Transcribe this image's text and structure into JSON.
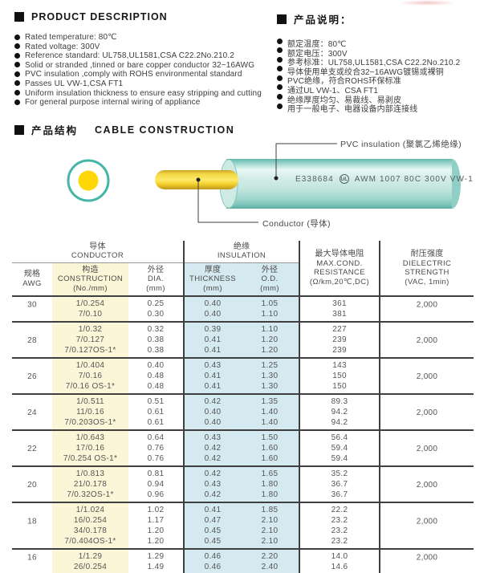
{
  "description_en": {
    "title": "PRODUCT  DESCRIPTION",
    "items": [
      "Rated temperature: 80℃",
      "Rated voltage: 300V",
      "Reference standard: UL758,UL1581,CSA C22.2No.210.2",
      "Solid or stranded ,tinned or bare copper conductor 32~16AWG",
      "PVC insulation ,comply with ROHS environmental standard",
      "Passes UL VW-1,CSA FT1",
      "Uniform insulation thickness to ensure easy stripping and cutting",
      "For general purpose internal wiring of appliance"
    ]
  },
  "description_cn": {
    "title": "产品说明：",
    "items": [
      "额定温度：80℃",
      "额定电压：300V",
      "参考标准：UL758,UL1581,CSA C22.2No.210.2",
      "导体使用单支或绞合32~16AWG镀锡或裸铜",
      "PVC绝缘，符合ROHS环保标准",
      "通过UL VW-1、CSA FT1",
      "绝缘厚度均匀、易裁线、易剥皮",
      "用于一般电子、电器设备内部连接线"
    ]
  },
  "construction": {
    "title_cn": "产品结构",
    "title_en": "CABLE  CONSTRUCTION",
    "pvc_label": "PVC insulation (聚氯乙烯绝缘)",
    "conductor_label": "Conductor (导体)",
    "print_cert": "E338684",
    "print_ul": "UL",
    "print_spec": "AWM 1007 80C 300V VW-1",
    "colors": {
      "jacket_teal": "#7cc6bc",
      "conductor_yellow": "#ffd90b",
      "ring_teal": "#45b5a8"
    }
  },
  "table": {
    "group_headers": {
      "conductor_cn": "导体",
      "conductor_en": "CONDUCTOR",
      "insulation_cn": "绝缘",
      "insulation_en": "INSULATION"
    },
    "columns": {
      "awg": {
        "cn": "规格",
        "en": "AWG"
      },
      "construction": {
        "cn": "构造",
        "en": "CONSTRUCTION",
        "unit": "(No./mm)"
      },
      "dia": {
        "cn": "外径",
        "en": "DIA.",
        "unit": "(mm)"
      },
      "thickness": {
        "cn": "厚度",
        "en": "THICKNESS",
        "unit": "(mm)"
      },
      "od": {
        "cn": "外径",
        "en": "O.D.",
        "unit": "(mm)"
      },
      "resistance": {
        "cn": "最大导体电阻",
        "en": "MAX.COND.",
        "en2": "RESISTANCE",
        "unit": "(Ω/km,20℃,DC)"
      },
      "dielectric": {
        "cn": "耐压强度",
        "en": "DIELECTRIC",
        "en2": "STRENGTH",
        "unit": "(VAC, 1min)"
      }
    },
    "rows": [
      {
        "awg": "30",
        "dielectric": "2,000",
        "lines": [
          {
            "construction": "1/0.254",
            "dia": "0.25",
            "thickness": "0.40",
            "od": "1.05",
            "resistance": "361"
          },
          {
            "construction": "7/0.10",
            "dia": "0.30",
            "thickness": "0.40",
            "od": "1.10",
            "resistance": "381"
          }
        ]
      },
      {
        "awg": "28",
        "dielectric": "2,000",
        "lines": [
          {
            "construction": "1/0.32",
            "dia": "0.32",
            "thickness": "0.39",
            "od": "1.10",
            "resistance": "227"
          },
          {
            "construction": "7/0.127",
            "dia": "0.38",
            "thickness": "0.41",
            "od": "1.20",
            "resistance": "239"
          },
          {
            "construction": "7/0.127OS-1*",
            "dia": "0.38",
            "thickness": "0.41",
            "od": "1.20",
            "resistance": "239"
          }
        ]
      },
      {
        "awg": "26",
        "dielectric": "2,000",
        "lines": [
          {
            "construction": "1/0.404",
            "dia": "0.40",
            "thickness": "0.43",
            "od": "1.25",
            "resistance": "143"
          },
          {
            "construction": "7/0.16",
            "dia": "0.48",
            "thickness": "0.41",
            "od": "1.30",
            "resistance": "150"
          },
          {
            "construction": "7/0.16 OS-1*",
            "dia": "0.48",
            "thickness": "0.41",
            "od": "1.30",
            "resistance": "150"
          }
        ]
      },
      {
        "awg": "24",
        "dielectric": "2,000",
        "lines": [
          {
            "construction": "1/0.511",
            "dia": "0.51",
            "thickness": "0.42",
            "od": "1.35",
            "resistance": "89.3"
          },
          {
            "construction": "11/0.16",
            "dia": "0.61",
            "thickness": "0.40",
            "od": "1.40",
            "resistance": "94.2"
          },
          {
            "construction": "7/0.203OS-1*",
            "dia": "0.61",
            "thickness": "0.40",
            "od": "1.40",
            "resistance": "94.2"
          }
        ]
      },
      {
        "awg": "22",
        "dielectric": "2,000",
        "lines": [
          {
            "construction": "1/0.643",
            "dia": "0.64",
            "thickness": "0.43",
            "od": "1.50",
            "resistance": "56.4"
          },
          {
            "construction": "17/0.16",
            "dia": "0.76",
            "thickness": "0.42",
            "od": "1.60",
            "resistance": "59.4"
          },
          {
            "construction": "7/0.254 OS-1*",
            "dia": "0.76",
            "thickness": "0.42",
            "od": "1.60",
            "resistance": "59.4"
          }
        ]
      },
      {
        "awg": "20",
        "dielectric": "2,000",
        "lines": [
          {
            "construction": "1/0.813",
            "dia": "0.81",
            "thickness": "0.42",
            "od": "1.65",
            "resistance": "35.2"
          },
          {
            "construction": "21/0.178",
            "dia": "0.94",
            "thickness": "0.43",
            "od": "1.80",
            "resistance": "36.7"
          },
          {
            "construction": "7/0.32OS-1*",
            "dia": "0.96",
            "thickness": "0.42",
            "od": "1.80",
            "resistance": "36.7"
          }
        ]
      },
      {
        "awg": "18",
        "dielectric": "2,000",
        "lines": [
          {
            "construction": "1/1.024",
            "dia": "1.02",
            "thickness": "0.41",
            "od": "1.85",
            "resistance": "22.2"
          },
          {
            "construction": "16/0.254",
            "dia": "1.17",
            "thickness": "0.47",
            "od": "2.10",
            "resistance": "23.2"
          },
          {
            "construction": "34/0.178",
            "dia": "1.20",
            "thickness": "0.45",
            "od": "2.10",
            "resistance": "23.2"
          },
          {
            "construction": "7/0.404OS-1*",
            "dia": "1.20",
            "thickness": "0.45",
            "od": "2.10",
            "resistance": "23.2"
          }
        ]
      },
      {
        "awg": "16",
        "dielectric": "2,000",
        "lines": [
          {
            "construction": "1/1.29",
            "dia": "1.29",
            "thickness": "0.46",
            "od": "2.20",
            "resistance": "14.0"
          },
          {
            "construction": "26/0.254",
            "dia": "1.49",
            "thickness": "0.46",
            "od": "2.40",
            "resistance": "14.6"
          }
        ]
      }
    ]
  }
}
